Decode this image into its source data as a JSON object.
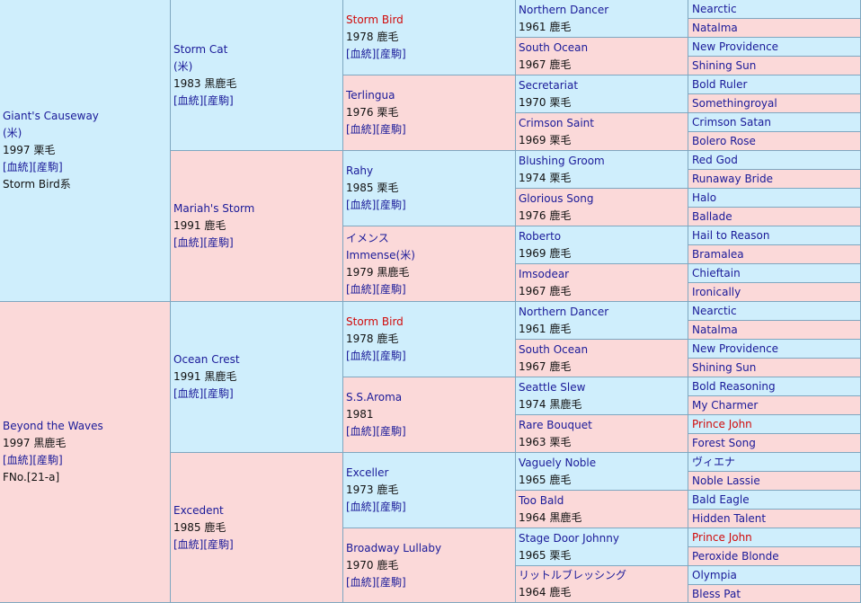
{
  "pedigree": {
    "sire": {
      "name": "Giant's Causeway",
      "origin": "(米)",
      "year_color": "1997 栗毛",
      "links": "[血統][産駒]",
      "lineage": "Storm Bird系",
      "sire": {
        "name": "Storm Cat",
        "origin": "(米)",
        "year_color": "1983 黒鹿毛",
        "links": "[血統][産駒]",
        "sire": {
          "name": "Storm Bird",
          "year_color": "1978 鹿毛",
          "links": "[血統][産駒]",
          "sire": {
            "name": "Northern Dancer",
            "year_color": "1961 鹿毛",
            "sire": "Nearctic",
            "dam": "Natalma"
          },
          "dam": {
            "name": "South Ocean",
            "year_color": "1967 鹿毛",
            "sire": "New Providence",
            "dam": "Shining Sun"
          }
        },
        "dam": {
          "name": "Terlingua",
          "year_color": "1976 栗毛",
          "links": "[血統][産駒]",
          "sire": {
            "name": "Secretariat",
            "year_color": "1970 栗毛",
            "sire": "Bold Ruler",
            "dam": "Somethingroyal"
          },
          "dam": {
            "name": "Crimson Saint",
            "year_color": "1969 栗毛",
            "sire": "Crimson Satan",
            "dam": "Bolero Rose"
          }
        }
      },
      "dam": {
        "name": "Mariah's Storm",
        "year_color": "1991 鹿毛",
        "links": "[血統][産駒]",
        "sire": {
          "name": "Rahy",
          "year_color": "1985 栗毛",
          "links": "[血統][産駒]",
          "sire": {
            "name": "Blushing Groom",
            "year_color": "1974 栗毛",
            "sire": "Red God",
            "dam": "Runaway Bride"
          },
          "dam": {
            "name": "Glorious Song",
            "year_color": "1976 鹿毛",
            "sire": "Halo",
            "dam": "Ballade"
          }
        },
        "dam": {
          "name": "イメンス",
          "alt_name": "Immense(米)",
          "year_color": "1979 黒鹿毛",
          "links": "[血統][産駒]",
          "sire": {
            "name": "Roberto",
            "year_color": "1969 鹿毛",
            "sire": "Hail to Reason",
            "dam": "Bramalea"
          },
          "dam": {
            "name": "Imsodear",
            "year_color": "1967 鹿毛",
            "sire": "Chieftain",
            "dam": "Ironically"
          }
        }
      }
    },
    "dam": {
      "name": "Beyond the Waves",
      "year_color": "1997 黒鹿毛",
      "links": "[血統][産駒]",
      "family": "FNo.[21-a]",
      "sire": {
        "name": "Ocean Crest",
        "year_color": "1991 黒鹿毛",
        "links": "[血統][産駒]",
        "sire": {
          "name": "Storm Bird",
          "year_color": "1978 鹿毛",
          "links": "[血統][産駒]",
          "sire": {
            "name": "Northern Dancer",
            "year_color": "1961 鹿毛",
            "sire": "Nearctic",
            "dam": "Natalma"
          },
          "dam": {
            "name": "South Ocean",
            "year_color": "1967 鹿毛",
            "sire": "New Providence",
            "dam": "Shining Sun"
          }
        },
        "dam": {
          "name": "S.S.Aroma",
          "year_color": "1981",
          "links": "[血統][産駒]",
          "sire": {
            "name": "Seattle Slew",
            "year_color": "1974 黒鹿毛",
            "sire": "Bold Reasoning",
            "dam": "My Charmer"
          },
          "dam": {
            "name": "Rare Bouquet",
            "year_color": "1963 栗毛",
            "sire": "Prince John",
            "dam": "Forest Song"
          }
        }
      },
      "dam": {
        "name": "Excedent",
        "year_color": "1985 鹿毛",
        "links": "[血統][産駒]",
        "sire": {
          "name": "Exceller",
          "year_color": "1973 鹿毛",
          "links": "[血統][産駒]",
          "sire": {
            "name": "Vaguely Noble",
            "year_color": "1965 鹿毛",
            "sire": "ヴィエナ",
            "dam": "Noble Lassie"
          },
          "dam": {
            "name": "Too Bald",
            "year_color": "1964 黒鹿毛",
            "sire": "Bald Eagle",
            "dam": "Hidden Talent"
          }
        },
        "dam": {
          "name": "Broadway Lullaby",
          "year_color": "1970 鹿毛",
          "links": "[血統][産駒]",
          "sire": {
            "name": "Stage Door Johnny",
            "year_color": "1965 栗毛",
            "sire": "Prince John",
            "dam": "Peroxide Blonde"
          },
          "dam": {
            "name": "リットルブレッシング",
            "year_color": "1964 鹿毛",
            "sire": "Olympia",
            "dam": "Bless Pat"
          }
        }
      }
    }
  },
  "colors": {
    "male_bg": "#cfeefc",
    "female_bg": "#fbd9d9",
    "name_link": "#1a1a99",
    "inbreeding_highlight": "#d10a0a",
    "cell_border": "#7fa7c0"
  }
}
